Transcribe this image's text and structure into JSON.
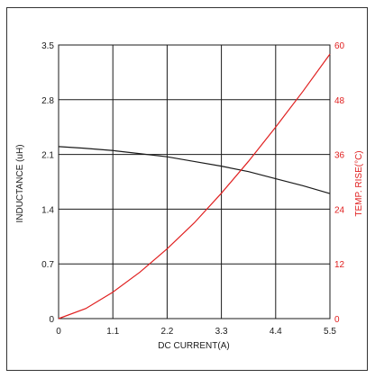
{
  "chart_data": {
    "type": "line",
    "title": "",
    "xlabel": "DC CURRENT(A)",
    "ylabel_left": "INDUCTANCE (uH)",
    "ylabel_right": "TEMP. RISE(°C)",
    "xlim": [
      0,
      5.5
    ],
    "ylim_left": [
      0,
      3.5
    ],
    "ylim_right": [
      0,
      60
    ],
    "x_ticks": [
      "0",
      "1.1",
      "2.2",
      "3.3",
      "4.4",
      "5.5"
    ],
    "y_ticks_left": [
      "0",
      "0.7",
      "1.4",
      "2.1",
      "2.8",
      "3.5"
    ],
    "y_ticks_right": [
      "0",
      "12",
      "24",
      "36",
      "48",
      "60"
    ],
    "grid": true,
    "series": [
      {
        "axis": "left",
        "color": "#1a1a1a",
        "x": [
          0,
          0.5,
          1.1,
          1.65,
          2.2,
          2.75,
          3.3,
          3.85,
          4.4,
          4.95,
          5.5
        ],
        "y": [
          2.2,
          2.18,
          2.15,
          2.11,
          2.07,
          2.01,
          1.95,
          1.88,
          1.79,
          1.7,
          1.6
        ]
      },
      {
        "axis": "right",
        "color": "#e02020",
        "x": [
          0,
          0.55,
          1.1,
          1.65,
          2.2,
          2.75,
          3.3,
          3.85,
          4.4,
          4.95,
          5.5
        ],
        "y": [
          0,
          2.2,
          5.8,
          10.2,
          15.3,
          21.0,
          27.5,
          34.5,
          42.0,
          49.8,
          58.0
        ]
      }
    ]
  },
  "colors": {
    "axis_left": "#1a1a1a",
    "axis_right": "#e02020",
    "grid": "#1a1a1a"
  }
}
